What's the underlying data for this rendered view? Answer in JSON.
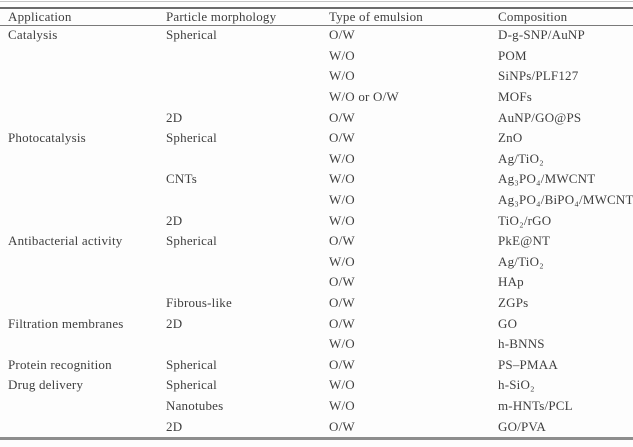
{
  "table": {
    "columns": [
      "Application",
      "Particle morphology",
      "Type of emulsion",
      "Composition"
    ],
    "rows": [
      [
        "Catalysis",
        "Spherical",
        "O/W",
        "D-g-SNP/AuNP"
      ],
      [
        "",
        "",
        "W/O",
        "POM"
      ],
      [
        "",
        "",
        "W/O",
        "SiNPs/PLF127"
      ],
      [
        "",
        "",
        "W/O or O/W",
        "MOFs"
      ],
      [
        "",
        "2D",
        "O/W",
        "AuNP/GO@PS"
      ],
      [
        "Photocatalysis",
        "Spherical",
        "O/W",
        "ZnO"
      ],
      [
        "",
        "",
        "W/O",
        "Ag/TiO₂"
      ],
      [
        "",
        "CNTs",
        "W/O",
        "Ag₃PO₄/MWCNT"
      ],
      [
        "",
        "",
        "W/O",
        "Ag₃PO₄/BiPO₄/MWCNT"
      ],
      [
        "",
        "2D",
        "W/O",
        "TiO₂/rGO"
      ],
      [
        "Antibacterial activity",
        "Spherical",
        "O/W",
        "PkE@NT"
      ],
      [
        "",
        "",
        "W/O",
        "Ag/TiO₂"
      ],
      [
        "",
        "",
        "O/W",
        "HAp"
      ],
      [
        "",
        "Fibrous-like",
        "O/W",
        "ZGPs"
      ],
      [
        "Filtration membranes",
        "2D",
        "O/W",
        "GO"
      ],
      [
        "",
        "",
        "W/O",
        "h-BNNS"
      ],
      [
        "Protein recognition",
        "Spherical",
        "O/W",
        "PS–PMAA"
      ],
      [
        "Drug delivery",
        "Spherical",
        "W/O",
        "h-SiO₂"
      ],
      [
        "",
        "Nanotubes",
        "W/O",
        "m-HNTs/PCL"
      ],
      [
        "",
        "2D",
        "O/W",
        "GO/PVA"
      ]
    ]
  },
  "colors": {
    "text": "#3e3e3e",
    "rule_dark": "#6b6b6b",
    "rule_light": "#c3c3c3",
    "rule_bottom": "#8d8d8d",
    "background": "#fdfdfd"
  }
}
